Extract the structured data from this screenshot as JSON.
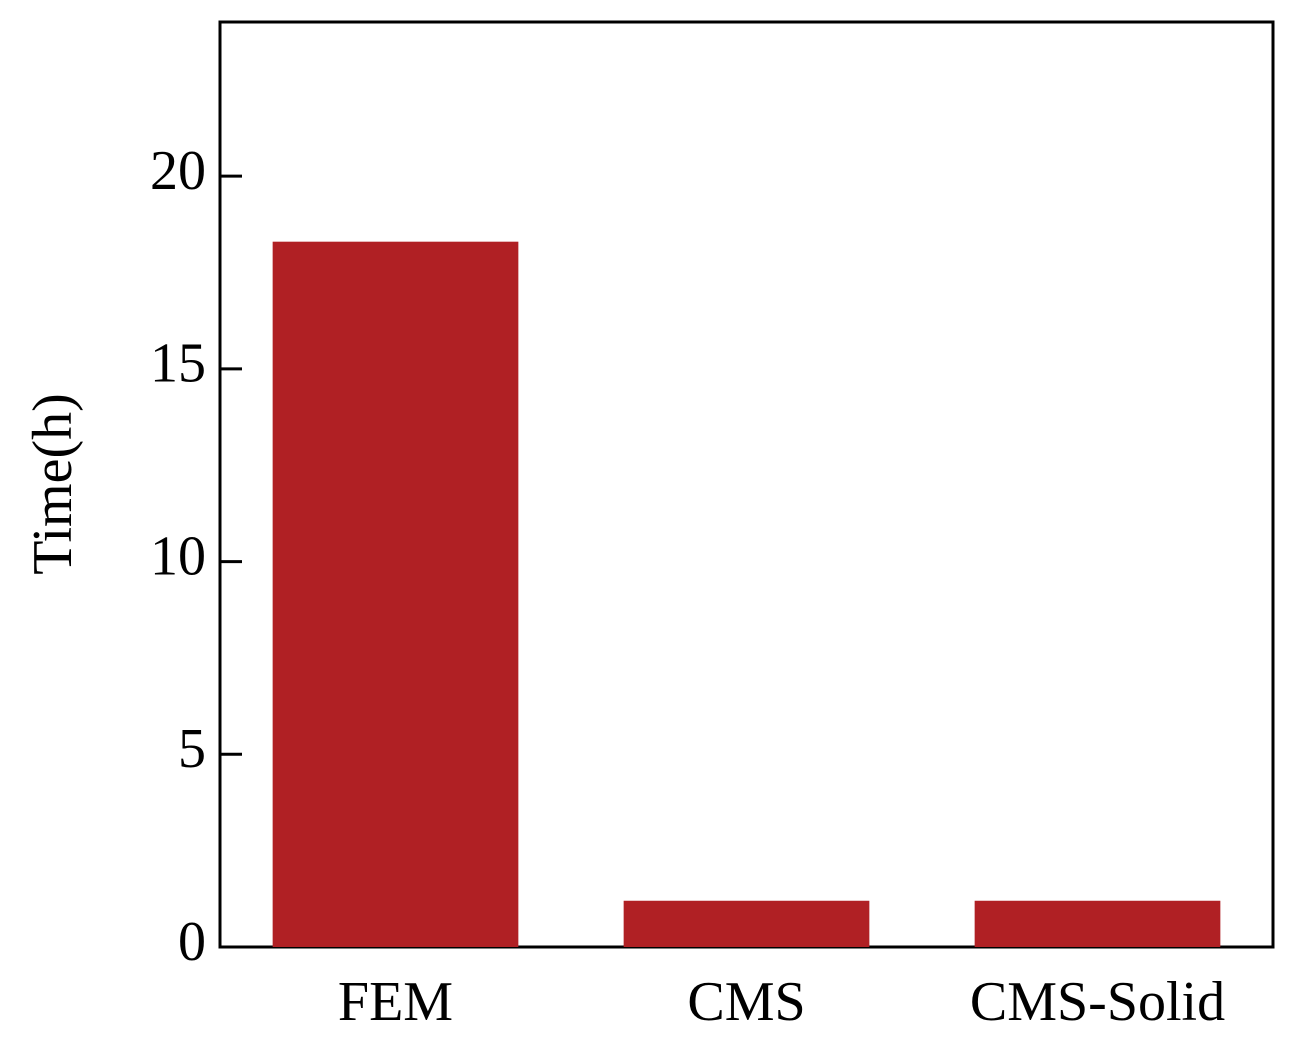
{
  "chart_data": {
    "type": "bar",
    "y_label": "Time(h)",
    "categories": [
      "FEM",
      "CMS",
      "CMS-Solid"
    ],
    "values": [
      18.3,
      1.2,
      1.2
    ],
    "color": "#b02024",
    "ylim": [
      0,
      24
    ],
    "yticks": [
      0,
      5,
      10,
      15,
      20
    ],
    "grid": false
  }
}
